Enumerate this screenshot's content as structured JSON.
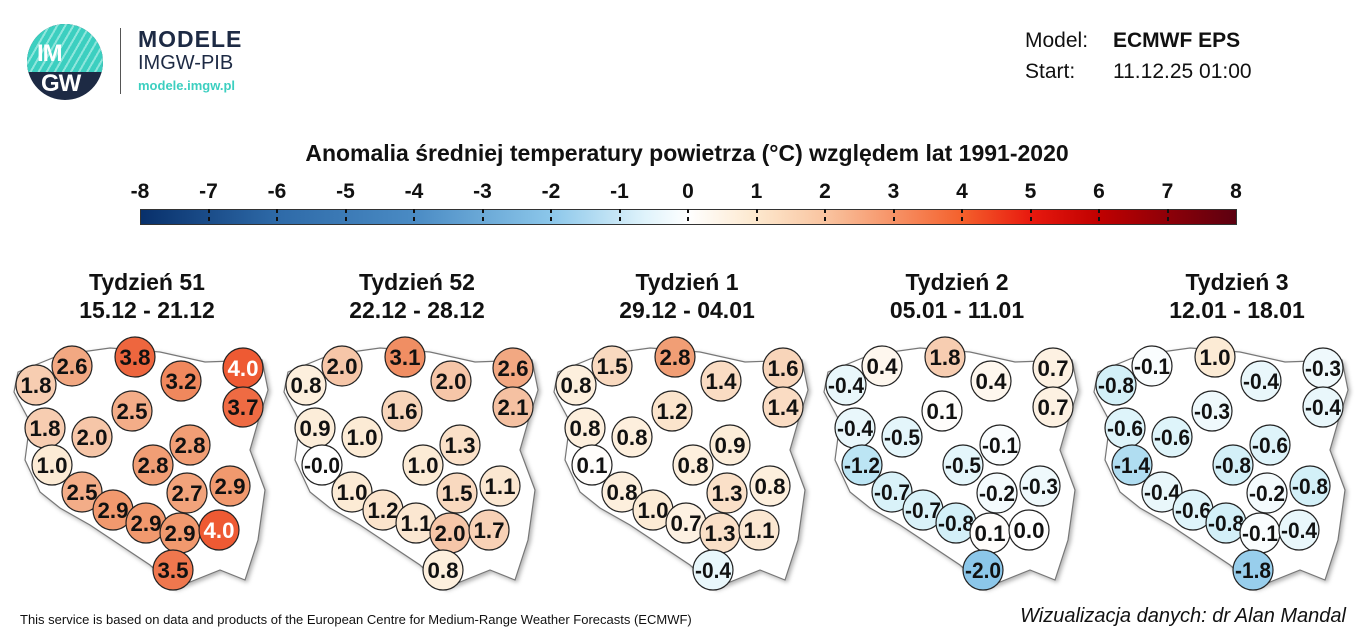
{
  "logo": {
    "mark": "IMGW",
    "brand_line1": "MODELE",
    "brand_line2": "IMGW-PIB",
    "brand_url": "modele.imgw.pl"
  },
  "header": {
    "model_label": "Model:",
    "model_value": "ECMWF EPS",
    "start_label": "Start:",
    "start_value": "11.12.25 01:00"
  },
  "title": "Anomalia średniej temperatury powietrza (°C) względem lat 1991-2020",
  "colorbar": {
    "ticks": [
      "-8",
      "-7",
      "-6",
      "-5",
      "-4",
      "-3",
      "-2",
      "-1",
      "0",
      "1",
      "2",
      "3",
      "4",
      "5",
      "6",
      "7",
      "8"
    ],
    "range": [
      -8,
      8
    ],
    "colors": {
      "-8": "#08306b",
      "-4": "#4a8bc4",
      "-2": "#8cc7ea",
      "0": "#ffffff",
      "2": "#f9c4a0",
      "4": "#f4602c",
      "5": "#e8190e",
      "6": "#c00000",
      "8": "#5c0010"
    }
  },
  "weeks": [
    {
      "title": "Tydzień 51",
      "dates": "15.12 - 21.12",
      "values": [
        1.8,
        2.6,
        3.8,
        3.2,
        4.0,
        3.7,
        2.5,
        1.8,
        2.0,
        2.8,
        2.8,
        1.0,
        2.5,
        2.9,
        2.7,
        2.9,
        2.9,
        2.9,
        4.0,
        3.5
      ],
      "labels": [
        "1.8",
        "2.6",
        "3.8",
        "3.2",
        "4.0",
        "3.7",
        "2.5",
        "1.8",
        "2.0",
        "2.8",
        "2.8",
        "1.0",
        "2.5",
        "2.9",
        "2.7",
        "2.9",
        "2.9",
        "2.9",
        "4.0",
        "3.5"
      ]
    },
    {
      "title": "Tydzień 52",
      "dates": "22.12 - 28.12",
      "values": [
        0.8,
        2.0,
        3.1,
        2.0,
        2.6,
        2.1,
        1.6,
        0.9,
        1.0,
        1.3,
        1.0,
        0.0,
        1.0,
        1.2,
        1.5,
        1.1,
        1.1,
        2.0,
        1.7,
        0.8
      ],
      "labels": [
        "0.8",
        "2.0",
        "3.1",
        "2.0",
        "2.6",
        "2.1",
        "1.6",
        "0.9",
        "1.0",
        "1.3",
        "1.0",
        "-0.0",
        "1.0",
        "1.2",
        "1.5",
        "1.1",
        "1.1",
        "2.0",
        "1.7",
        "0.8"
      ]
    },
    {
      "title": "Tydzień 1",
      "dates": "29.12 - 04.01",
      "values": [
        0.8,
        1.5,
        2.8,
        1.4,
        1.6,
        1.4,
        1.2,
        0.8,
        0.8,
        0.9,
        0.8,
        0.1,
        0.8,
        1.0,
        1.3,
        0.8,
        0.7,
        1.3,
        1.1,
        -0.4
      ],
      "labels": [
        "0.8",
        "1.5",
        "2.8",
        "1.4",
        "1.6",
        "1.4",
        "1.2",
        "0.8",
        "0.8",
        "0.9",
        "0.8",
        "0.1",
        "0.8",
        "1.0",
        "1.3",
        "0.8",
        "0.7",
        "1.3",
        "1.1",
        "-0.4"
      ]
    },
    {
      "title": "Tydzień 2",
      "dates": "05.01 - 11.01",
      "values": [
        -0.4,
        0.4,
        1.8,
        0.4,
        0.7,
        0.7,
        0.1,
        -0.4,
        -0.5,
        -0.1,
        -0.5,
        -1.2,
        -0.7,
        -0.7,
        -0.2,
        -0.3,
        -0.8,
        0.1,
        0.0,
        -2.0
      ],
      "labels": [
        "-0.4",
        "0.4",
        "1.8",
        "0.4",
        "0.7",
        "0.7",
        "0.1",
        "-0.4",
        "-0.5",
        "-0.1",
        "-0.5",
        "-1.2",
        "-0.7",
        "-0.7",
        "-0.2",
        "-0.3",
        "-0.8",
        "0.1",
        "0.0",
        "-2.0"
      ]
    },
    {
      "title": "Tydzień 3",
      "dates": "12.01 - 18.01",
      "values": [
        -0.8,
        -0.1,
        1.0,
        -0.4,
        -0.3,
        -0.4,
        -0.3,
        -0.6,
        -0.6,
        -0.6,
        -0.8,
        -1.4,
        -0.4,
        -0.6,
        -0.2,
        -0.8,
        -0.8,
        -0.1,
        -0.4,
        -1.8
      ],
      "labels": [
        "-0.8",
        "-0.1",
        "1.0",
        "-0.4",
        "-0.3",
        "-0.4",
        "-0.3",
        "-0.6",
        "-0.6",
        "-0.6",
        "-0.8",
        "-1.4",
        "-0.4",
        "-0.6",
        "-0.2",
        "-0.8",
        "-0.8",
        "-0.1",
        "-0.4",
        "-1.8"
      ]
    }
  ],
  "footer": {
    "left": "This service is based on data and products of the European Centre for Medium-Range Weather Forecasts (ECMWF)",
    "right": "Wizualizacja danych: dr Alan Mandal"
  }
}
